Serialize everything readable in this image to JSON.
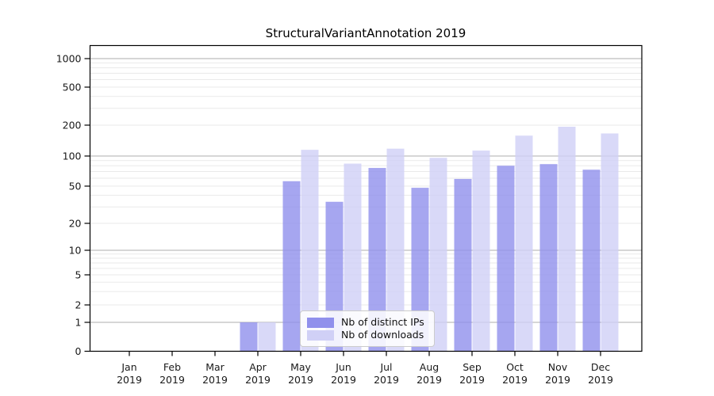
{
  "chart_data": {
    "type": "bar",
    "title": "StructuralVariantAnnotation 2019",
    "year": "2019",
    "months": [
      "Jan",
      "Feb",
      "Mar",
      "Apr",
      "May",
      "Jun",
      "Jul",
      "Aug",
      "Sep",
      "Oct",
      "Nov",
      "Dec"
    ],
    "series": [
      {
        "name": "Nb of distinct IPs",
        "color": "#9090ec",
        "values": [
          0,
          0,
          0,
          1,
          56,
          34,
          76,
          48,
          59,
          80,
          83,
          73
        ]
      },
      {
        "name": "Nb of downloads",
        "color": "#d0d0f6",
        "values": [
          0,
          0,
          0,
          1,
          115,
          84,
          118,
          96,
          113,
          158,
          193,
          166
        ]
      }
    ],
    "y_ticks": [
      0,
      1,
      2,
      5,
      10,
      20,
      50,
      100,
      200,
      500,
      1000
    ],
    "xlabel": "",
    "ylabel": "",
    "scale": "log-like (linear between 0 and 1)",
    "ylim": [
      0,
      1400
    ],
    "grid": {
      "major_color": "#bdbdbd",
      "minor_color": "#eaeaea",
      "axis_color": "#000000"
    },
    "legend_position": "bottom-center"
  }
}
